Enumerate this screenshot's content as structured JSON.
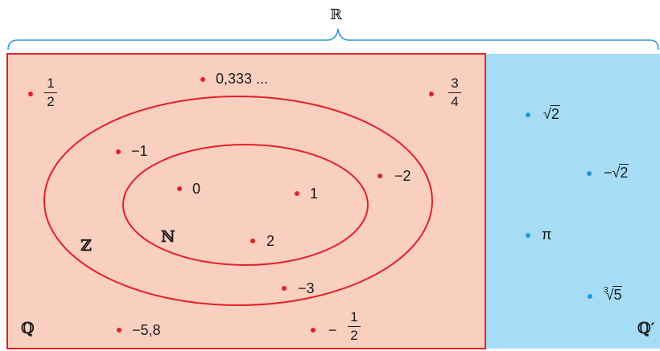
{
  "sets": {
    "reals": "ℝ",
    "rationals": "ℚ",
    "integers": "ℤ",
    "naturals": "ℕ",
    "irrationals": "ℚ′"
  },
  "rational_elements": {
    "half": {
      "num": "1",
      "den": "2"
    },
    "repeating": "0,333 ...",
    "three_quarters": {
      "num": "3",
      "den": "4"
    },
    "minus_five_eight": "−5,8",
    "minus_half": {
      "sign": "−",
      "num": "1",
      "den": "2"
    }
  },
  "integer_elements": {
    "minus_one": "−1",
    "minus_two": "−2",
    "minus_three": "−3"
  },
  "natural_elements": {
    "zero": "0",
    "one": "1",
    "two": "2"
  },
  "irrational_elements": {
    "sqrt2": {
      "radicand": "2"
    },
    "minus_sqrt2": {
      "sign": "−",
      "radicand": "2"
    },
    "pi": "π",
    "cbrt5": {
      "index": "3",
      "radicand": "5"
    }
  },
  "colors": {
    "rational_fill": "#f9cfc0",
    "irrational_fill": "#a6dcf6",
    "outline": "#e3202a",
    "brace": "#2a9be0",
    "dot_red": "#e3202a",
    "dot_blue": "#1e9be0"
  }
}
